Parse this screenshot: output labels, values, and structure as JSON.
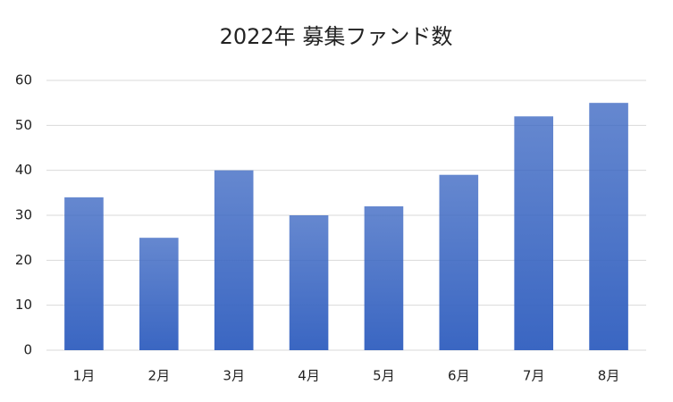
{
  "chart_data": {
    "type": "bar",
    "title": "2022年 募集ファンド数",
    "categories": [
      "1月",
      "2月",
      "3月",
      "4月",
      "5月",
      "6月",
      "7月",
      "8月"
    ],
    "values": [
      34,
      25,
      40,
      30,
      32,
      39,
      52,
      55
    ],
    "color": "#3a66c2",
    "ylim": [
      0,
      60
    ],
    "yticks": [
      0,
      10,
      20,
      30,
      40,
      50,
      60
    ],
    "grid": true
  }
}
